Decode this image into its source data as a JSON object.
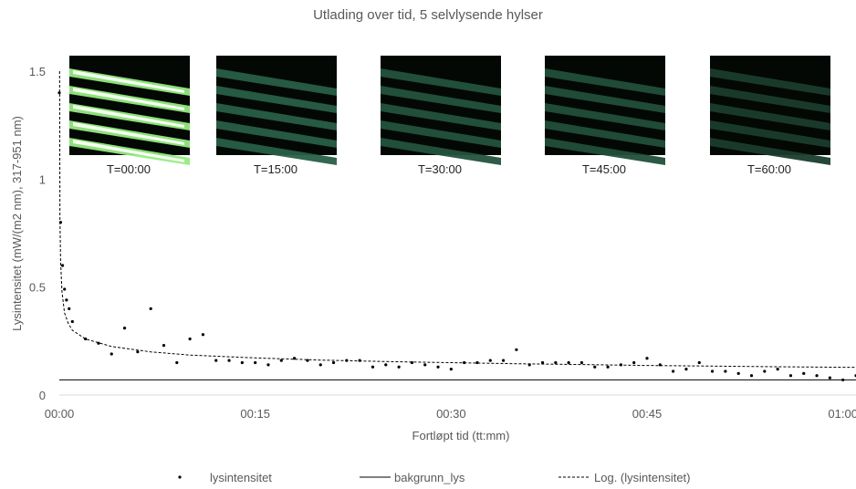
{
  "chart_data": {
    "type": "scatter",
    "title": "Utlading over tid, 5 selvlysende hylser",
    "xlabel": "Fortløpt tid (tt:mm)",
    "ylabel": "Lysintensitet (mW/(m2 nm), 317-951 nm)",
    "x_unit": "minutes",
    "xlim": [
      0,
      61
    ],
    "ylim": [
      0,
      1.5
    ],
    "x_ticks": [
      {
        "value": 0,
        "label": "00:00"
      },
      {
        "value": 15,
        "label": "00:15"
      },
      {
        "value": 30,
        "label": "00:30"
      },
      {
        "value": 45,
        "label": "00:45"
      },
      {
        "value": 60,
        "label": "01:00"
      }
    ],
    "y_ticks": [
      {
        "value": 0,
        "label": "0"
      },
      {
        "value": 0.5,
        "label": "0.5"
      },
      {
        "value": 1,
        "label": "1"
      },
      {
        "value": 1.5,
        "label": "1.5"
      }
    ],
    "grid": false,
    "legend_position": "bottom",
    "series": [
      {
        "name": "lysintensitet",
        "style": "markers",
        "color": "#000000",
        "points": [
          [
            0,
            1.4
          ],
          [
            0.1,
            0.8
          ],
          [
            0.25,
            0.6
          ],
          [
            0.4,
            0.49
          ],
          [
            0.55,
            0.44
          ],
          [
            0.75,
            0.4
          ],
          [
            1.0,
            0.34
          ],
          [
            2,
            0.26
          ],
          [
            3,
            0.24
          ],
          [
            4,
            0.19
          ],
          [
            5,
            0.31
          ],
          [
            6,
            0.2
          ],
          [
            7,
            0.4
          ],
          [
            8,
            0.23
          ],
          [
            9,
            0.15
          ],
          [
            10,
            0.26
          ],
          [
            11,
            0.28
          ],
          [
            12,
            0.16
          ],
          [
            13,
            0.16
          ],
          [
            14,
            0.15
          ],
          [
            15,
            0.15
          ],
          [
            16,
            0.14
          ],
          [
            17,
            0.16
          ],
          [
            18,
            0.17
          ],
          [
            19,
            0.16
          ],
          [
            20,
            0.14
          ],
          [
            21,
            0.15
          ],
          [
            22,
            0.16
          ],
          [
            23,
            0.16
          ],
          [
            24,
            0.13
          ],
          [
            25,
            0.14
          ],
          [
            26,
            0.13
          ],
          [
            27,
            0.15
          ],
          [
            28,
            0.14
          ],
          [
            29,
            0.13
          ],
          [
            30,
            0.12
          ],
          [
            31,
            0.15
          ],
          [
            32,
            0.15
          ],
          [
            33,
            0.16
          ],
          [
            34,
            0.16
          ],
          [
            35,
            0.21
          ],
          [
            36,
            0.14
          ],
          [
            37,
            0.15
          ],
          [
            38,
            0.15
          ],
          [
            39,
            0.15
          ],
          [
            40,
            0.15
          ],
          [
            41,
            0.13
          ],
          [
            42,
            0.13
          ],
          [
            43,
            0.14
          ],
          [
            44,
            0.15
          ],
          [
            45,
            0.17
          ],
          [
            46,
            0.14
          ],
          [
            47,
            0.11
          ],
          [
            48,
            0.12
          ],
          [
            49,
            0.15
          ],
          [
            50,
            0.11
          ],
          [
            51,
            0.11
          ],
          [
            52,
            0.1
          ],
          [
            53,
            0.09
          ],
          [
            54,
            0.11
          ],
          [
            55,
            0.12
          ],
          [
            56,
            0.09
          ],
          [
            57,
            0.1
          ],
          [
            58,
            0.09
          ],
          [
            59,
            0.08
          ],
          [
            60,
            0.07
          ],
          [
            61,
            0.09
          ]
        ]
      },
      {
        "name": "bakgrunn_lys",
        "style": "solid-line",
        "color": "#000000",
        "y": 0.07
      },
      {
        "name": "Log. (lysintensitet)",
        "style": "dashed-line",
        "color": "#000000",
        "trendline": "logarithmic",
        "points": [
          [
            0.02,
            1.5
          ],
          [
            0.05,
            0.82
          ],
          [
            0.1,
            0.62
          ],
          [
            0.2,
            0.48
          ],
          [
            0.4,
            0.38
          ],
          [
            0.7,
            0.33
          ],
          [
            1.0,
            0.3
          ],
          [
            2,
            0.26
          ],
          [
            4,
            0.225
          ],
          [
            7,
            0.2
          ],
          [
            10,
            0.185
          ],
          [
            15,
            0.172
          ],
          [
            20,
            0.162
          ],
          [
            25,
            0.155
          ],
          [
            30,
            0.15
          ],
          [
            35,
            0.145
          ],
          [
            40,
            0.141
          ],
          [
            45,
            0.137
          ],
          [
            50,
            0.134
          ],
          [
            55,
            0.131
          ],
          [
            61,
            0.128
          ]
        ]
      }
    ],
    "photos": [
      {
        "label": "T=00:00",
        "level": 1.0
      },
      {
        "label": "T=15:00",
        "level": 0.42
      },
      {
        "label": "T=30:00",
        "level": 0.33
      },
      {
        "label": "T=45:00",
        "level": 0.3
      },
      {
        "label": "T=60:00",
        "level": 0.18
      }
    ]
  }
}
